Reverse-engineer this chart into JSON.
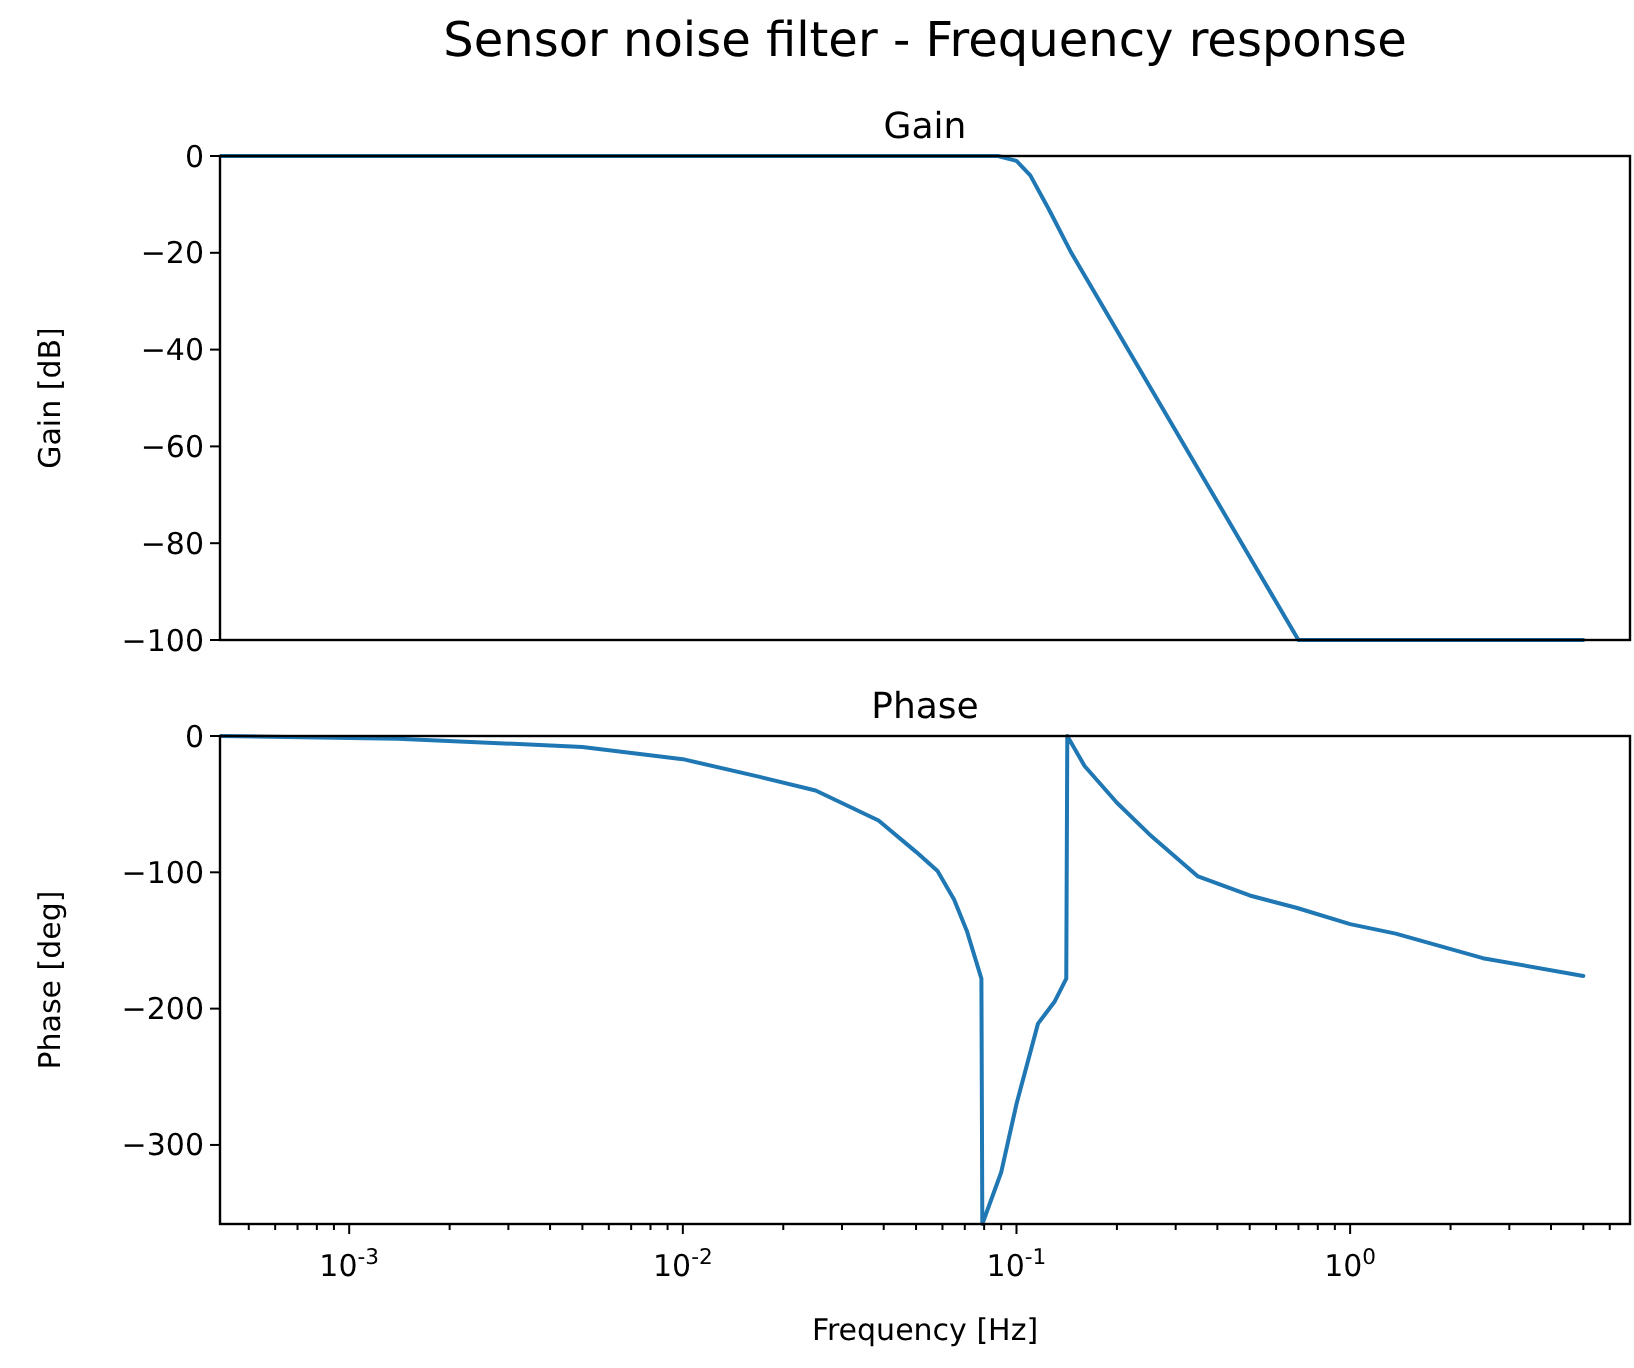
{
  "chart_data": [
    {
      "type": "line",
      "title": "Sensor noise filter - Frequency response",
      "subtitle": "Gain",
      "ylabel": "Gain [dB]",
      "log": "x",
      "xlim": [
        0.00041,
        6.9
      ],
      "ylim": [
        -100,
        0
      ],
      "yticks": [
        -100,
        -80,
        -60,
        -40,
        -20,
        0
      ],
      "tick_labels": "y",
      "grid": false,
      "marker": "none",
      "line_style": "solid",
      "series": [
        {
          "color": "#1f77b4",
          "x": [
            0.00041,
            0.01,
            0.088,
            0.1,
            0.11,
            0.125,
            0.146,
            0.7,
            1,
            5
          ],
          "values": [
            0,
            0,
            0,
            -1,
            -4,
            -11,
            -20,
            -100,
            -100,
            -100
          ]
        }
      ]
    },
    {
      "type": "line",
      "subtitle": "Phase",
      "xlabel": "Frequency [Hz]",
      "ylabel": "Phase [deg]",
      "log": "x",
      "xlim": [
        0.00041,
        6.9
      ],
      "ylim": [
        -358,
        0
      ],
      "xticks": [
        {
          "value": 0.0005,
          "label": null
        },
        {
          "value": 0.0006,
          "label": null
        },
        {
          "value": 0.0007,
          "label": null
        },
        {
          "value": 0.0008,
          "label": null
        },
        {
          "value": 0.0009,
          "label": null
        },
        {
          "value": 0.001,
          "label": "10$^{-3}$"
        },
        {
          "value": 0.002,
          "label": null
        },
        {
          "value": 0.003,
          "label": null
        },
        {
          "value": 0.004,
          "label": null
        },
        {
          "value": 0.005,
          "label": null
        },
        {
          "value": 0.006,
          "label": null
        },
        {
          "value": 0.007,
          "label": null
        },
        {
          "value": 0.008,
          "label": null
        },
        {
          "value": 0.009,
          "label": null
        },
        {
          "value": 0.01,
          "label": "10$^{-2}$"
        },
        {
          "value": 0.02,
          "label": null
        },
        {
          "value": 0.03,
          "label": null
        },
        {
          "value": 0.04,
          "label": null
        },
        {
          "value": 0.05,
          "label": null
        },
        {
          "value": 0.06,
          "label": null
        },
        {
          "value": 0.07,
          "label": null
        },
        {
          "value": 0.08,
          "label": null
        },
        {
          "value": 0.09,
          "label": null
        },
        {
          "value": 0.1,
          "label": "10$^{-1}$"
        },
        {
          "value": 0.2,
          "label": null
        },
        {
          "value": 0.3,
          "label": null
        },
        {
          "value": 0.4,
          "label": null
        },
        {
          "value": 0.5,
          "label": null
        },
        {
          "value": 0.6,
          "label": null
        },
        {
          "value": 0.7,
          "label": null
        },
        {
          "value": 0.8,
          "label": null
        },
        {
          "value": 0.9,
          "label": null
        },
        {
          "value": 1,
          "label": "10$^{0}$"
        },
        {
          "value": 2,
          "label": null
        },
        {
          "value": 3,
          "label": null
        },
        {
          "value": 4,
          "label": null
        },
        {
          "value": 5,
          "label": null
        },
        {
          "value": 6,
          "label": null
        }
      ],
      "yticks": [
        -300,
        -200,
        -100,
        0
      ],
      "grid": false,
      "marker": "none",
      "line_style": "solid",
      "series": [
        {
          "color": "#1f77b4",
          "x": [
            0.00041,
            0.0014,
            0.005,
            0.01,
            0.017,
            0.025,
            0.0386,
            0.05,
            0.058,
            0.065,
            0.071,
            0.0785,
            0.079,
            0.09,
            0.1,
            0.116,
            0.13,
            0.141,
            0.142,
            0.16,
            0.2,
            0.25,
            0.35,
            0.5,
            0.69,
            1,
            1.37,
            2.5,
            5
          ],
          "values": [
            0,
            -2,
            -8,
            -17,
            -30,
            -40,
            -62,
            -85,
            -99,
            -120,
            -143,
            -178,
            -358,
            -320,
            -270,
            -211,
            -195,
            -178,
            0,
            -22,
            -49,
            -72,
            -103,
            -117,
            -126,
            -138,
            -145,
            -163,
            -176
          ]
        }
      ]
    }
  ]
}
